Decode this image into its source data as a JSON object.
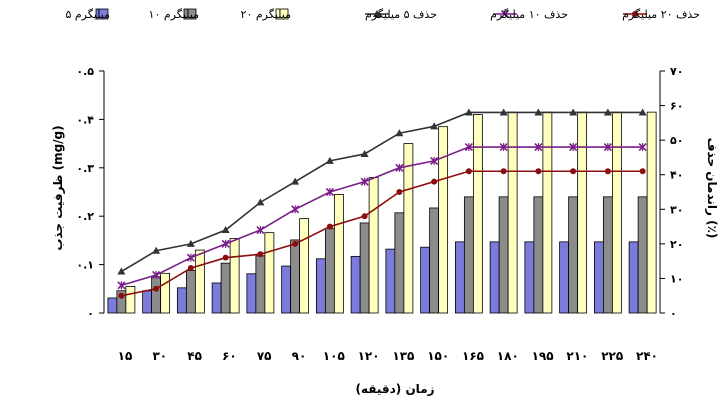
{
  "chart_data": {
    "type": "bar",
    "categories": [
      "15",
      "30",
      "45",
      "60",
      "75",
      "90",
      "105",
      "120",
      "135",
      "150",
      "165",
      "180",
      "195",
      "210",
      "225",
      "240"
    ],
    "category_labels": [
      "۱۵",
      "۳۰",
      "۴۵",
      "۶۰",
      "۷۵",
      "۹۰",
      "۱۰۵",
      "۱۲۰",
      "۱۳۵",
      "۱۵۰",
      "۱۶۵",
      "۱۸۰",
      "۱۹۵",
      "۲۱۰",
      "۲۲۵",
      "۲۴۰"
    ],
    "xlabel": "زمان (دقیقه)",
    "ylabel": "ظرفیت جذب (mg/g)",
    "y2label": "راندمان حذف (٪)",
    "ylim": [
      0,
      0.5
    ],
    "y2lim": [
      0,
      70
    ],
    "yticks": [
      0,
      0.1,
      0.2,
      0.3,
      0.4,
      0.5
    ],
    "ytick_labels": [
      "۰",
      "۰.۱",
      "۰.۲",
      "۰.۳",
      "۰.۴",
      "۰.۵"
    ],
    "y2ticks": [
      0,
      10,
      20,
      30,
      40,
      50,
      60,
      70
    ],
    "y2tick_labels": [
      "۰",
      "۱۰",
      "۲۰",
      "۳۰",
      "۴۰",
      "۵۰",
      "۶۰",
      "۷۰"
    ],
    "grid": false,
    "legend_position": "top",
    "bar_series": [
      {
        "name": "میلیگرم ۵",
        "color": "#7b7bdc",
        "values": [
          0.031,
          0.046,
          0.052,
          0.062,
          0.081,
          0.097,
          0.112,
          0.117,
          0.132,
          0.136,
          0.147,
          0.147,
          0.147,
          0.147,
          0.147,
          0.147
        ]
      },
      {
        "name": "میلیگرم ۱۰",
        "color": "#8c8c8c",
        "values": [
          0.046,
          0.075,
          0.088,
          0.103,
          0.118,
          0.151,
          0.175,
          0.186,
          0.207,
          0.217,
          0.24,
          0.24,
          0.24,
          0.24,
          0.24,
          0.24
        ]
      },
      {
        "name": "میلیگرم ۲۰",
        "color": "#ffffc0",
        "values": [
          0.055,
          0.082,
          0.13,
          0.154,
          0.166,
          0.195,
          0.245,
          0.28,
          0.35,
          0.385,
          0.41,
          0.415,
          0.415,
          0.415,
          0.415,
          0.415
        ]
      }
    ],
    "line_series": [
      {
        "name": "حذف ۵ میلیگرم",
        "color": "#333333",
        "marker": "triangle",
        "values": [
          12,
          18,
          20,
          24,
          32,
          38,
          44,
          46,
          52,
          54,
          58,
          58,
          58,
          58,
          58,
          58
        ]
      },
      {
        "name": "حذف ۱۰ میلیگرم",
        "color": "#7a1e8a",
        "marker": "x",
        "values": [
          8,
          11,
          16,
          20,
          24,
          30,
          35,
          38,
          42,
          44,
          48,
          48,
          48,
          48,
          48,
          48
        ]
      },
      {
        "name": "حذف ۲۰ میلیگرم",
        "color": "#8b0d0d",
        "marker": "circle",
        "values": [
          5,
          7,
          13,
          16,
          17,
          20,
          25,
          28,
          35,
          38,
          41,
          41,
          41,
          41,
          41,
          41
        ]
      }
    ]
  }
}
